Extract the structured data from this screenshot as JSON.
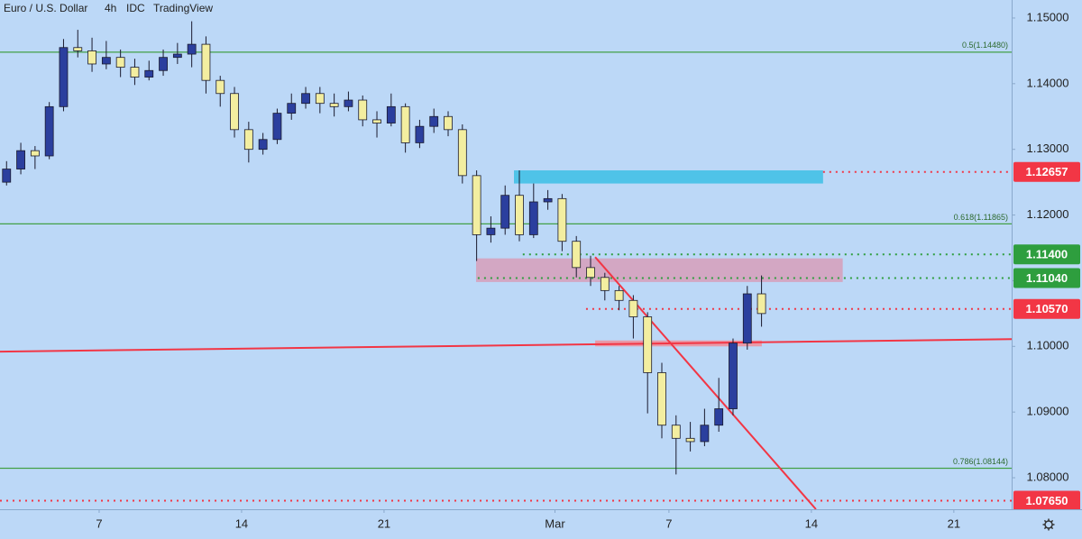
{
  "chart_data": {
    "type": "candlestick",
    "title": "Euro / U.S. Dollar",
    "interval": "4h",
    "source": "IDC",
    "brand": "TradingView",
    "background": "#bcd8f7",
    "up_color": "#2b3f9e",
    "down_color": "#f3eea0",
    "xlim": [
      -3.48,
      32.03
    ],
    "ylim": [
      1.0752,
      1.15274
    ],
    "xticks": [
      {
        "value": 0,
        "label": "7"
      },
      {
        "value": 5,
        "label": "14"
      },
      {
        "value": 10,
        "label": "21"
      },
      {
        "value": 16,
        "label": "Mar"
      },
      {
        "value": 20,
        "label": "7"
      },
      {
        "value": 25,
        "label": "14"
      },
      {
        "value": 30,
        "label": "21"
      }
    ],
    "yticks": [
      {
        "value": 1.08,
        "label": "1.08000"
      },
      {
        "value": 1.09,
        "label": "1.09000"
      },
      {
        "value": 1.1,
        "label": "1.10000"
      },
      {
        "value": 1.11,
        "label": "1.11000"
      },
      {
        "value": 1.12,
        "label": "1.12000"
      },
      {
        "value": 1.13,
        "label": "1.13000"
      },
      {
        "value": 1.14,
        "label": "1.14000"
      },
      {
        "value": 1.15,
        "label": "1.15000"
      }
    ],
    "x": [
      -3.25,
      -2.75,
      -2.25,
      -1.75,
      -1.25,
      -0.75,
      -0.25,
      0.25,
      0.75,
      1.25,
      1.75,
      2.25,
      2.75,
      3.25,
      3.75,
      4.25,
      4.75,
      5.25,
      5.75,
      6.25,
      6.75,
      7.25,
      7.75,
      8.25,
      8.75,
      9.25,
      9.75,
      10.25,
      10.75,
      11.25,
      11.75,
      12.25,
      12.75,
      13.25,
      13.75,
      14.25,
      14.75,
      15.25,
      15.75,
      16.25,
      16.75,
      17.25,
      17.75,
      18.25,
      18.75,
      19.25,
      19.75,
      20.25,
      20.75,
      21.25,
      21.75,
      22.25,
      22.75,
      23.25
    ],
    "open": [
      1.125,
      1.127,
      1.1298,
      1.129,
      1.1365,
      1.1455,
      1.145,
      1.143,
      1.144,
      1.1425,
      1.141,
      1.142,
      1.144,
      1.1445,
      1.146,
      1.1405,
      1.1385,
      1.133,
      1.13,
      1.1315,
      1.1355,
      1.137,
      1.1385,
      1.137,
      1.1365,
      1.1375,
      1.1345,
      1.134,
      1.1365,
      1.131,
      1.1335,
      1.135,
      1.133,
      1.126,
      1.117,
      1.118,
      1.123,
      1.117,
      1.122,
      1.1225,
      1.116,
      1.112,
      1.1105,
      1.1085,
      1.107,
      1.1045,
      1.096,
      1.088,
      1.086,
      1.0855,
      1.088,
      1.0905,
      1.1005,
      1.108
    ],
    "high": [
      1.1282,
      1.131,
      1.1305,
      1.1372,
      1.1468,
      1.1482,
      1.147,
      1.1465,
      1.1452,
      1.1438,
      1.1435,
      1.1452,
      1.1462,
      1.1495,
      1.1472,
      1.1412,
      1.1395,
      1.1342,
      1.1325,
      1.1362,
      1.1385,
      1.1395,
      1.1395,
      1.1385,
      1.1388,
      1.1382,
      1.1358,
      1.1385,
      1.137,
      1.1345,
      1.1362,
      1.1358,
      1.1338,
      1.1268,
      1.1198,
      1.1245,
      1.1268,
      1.1248,
      1.1238,
      1.1232,
      1.1168,
      1.1138,
      1.1112,
      1.1092,
      1.1078,
      1.1052,
      1.0975,
      1.0895,
      1.0885,
      1.0905,
      1.0952,
      1.1012,
      1.1092,
      1.1108
    ],
    "low": [
      1.1245,
      1.1262,
      1.127,
      1.1285,
      1.1358,
      1.144,
      1.1418,
      1.1422,
      1.141,
      1.1398,
      1.1405,
      1.1412,
      1.143,
      1.1425,
      1.1385,
      1.1365,
      1.1318,
      1.128,
      1.1292,
      1.1308,
      1.1345,
      1.1362,
      1.1355,
      1.135,
      1.1358,
      1.1335,
      1.1318,
      1.1335,
      1.1295,
      1.1302,
      1.1325,
      1.132,
      1.1248,
      1.113,
      1.1158,
      1.117,
      1.116,
      1.1165,
      1.1208,
      1.1145,
      1.1105,
      1.1092,
      1.107,
      1.1055,
      1.1012,
      1.0898,
      1.086,
      1.0805,
      1.084,
      1.0848,
      1.087,
      1.0895,
      1.0995,
      1.103
    ],
    "close": [
      1.127,
      1.1298,
      1.129,
      1.1365,
      1.1455,
      1.145,
      1.143,
      1.144,
      1.1425,
      1.141,
      1.142,
      1.144,
      1.1445,
      1.146,
      1.1405,
      1.1385,
      1.133,
      1.13,
      1.1315,
      1.1355,
      1.137,
      1.1385,
      1.137,
      1.1365,
      1.1375,
      1.1345,
      1.134,
      1.1365,
      1.131,
      1.1335,
      1.135,
      1.133,
      1.126,
      1.117,
      1.118,
      1.123,
      1.117,
      1.122,
      1.1225,
      1.116,
      1.112,
      1.1105,
      1.1085,
      1.107,
      1.1045,
      1.096,
      1.088,
      1.086,
      1.0855,
      1.088,
      1.0905,
      1.1005,
      1.108,
      1.105
    ],
    "zones": [
      {
        "x": [
          14.56,
          25.41
        ],
        "y": [
          1.1248,
          1.1268
        ],
        "color": "#4fc3e8"
      },
      {
        "x": [
          13.23,
          26.1
        ],
        "y": [
          1.1098,
          1.1134
        ],
        "color": "#d3a7c3"
      },
      {
        "x": [
          17.41,
          23.26
        ],
        "y": [
          1.1,
          1.1009
        ],
        "color": "#e89aa8"
      }
    ],
    "trendlines": [
      {
        "x": [
          -3.48,
          32.03
        ],
        "y": [
          1.0992,
          1.1011
        ],
        "color": "#f23645"
      },
      {
        "x": [
          17.41,
          25.16
        ],
        "y": [
          1.1136,
          1.0752
        ],
        "color": "#f23645"
      }
    ],
    "levels": [
      {
        "value": 1.1448,
        "label": "0.5(1.14480)",
        "color": "#43a047",
        "style": "solid",
        "x0": -3.48
      },
      {
        "value": 1.11865,
        "label": "0.618(1.11865)",
        "color": "#43a047",
        "style": "solid",
        "x0": -3.48
      },
      {
        "value": 1.08144,
        "label": "0.786(1.08144)",
        "color": "#43a047",
        "style": "solid",
        "x0": -3.48
      },
      {
        "value": 1.12657,
        "label": "1.12657",
        "color": "#f23645",
        "style": "dotted",
        "x0": 25.41
      },
      {
        "value": 1.114,
        "label": "1.11400",
        "color": "#2e9e3e",
        "style": "dotted",
        "x0": 14.87
      },
      {
        "value": 1.1104,
        "label": "1.11040",
        "color": "#2e9e3e",
        "style": "dotted",
        "x0": 13.29
      },
      {
        "value": 1.1057,
        "label": "1.10570",
        "color": "#f23645",
        "style": "dotted",
        "x0": 17.09
      },
      {
        "value": 1.0765,
        "label": "1.07650",
        "color": "#f23645",
        "style": "dotted",
        "x0": -3.48
      }
    ]
  }
}
